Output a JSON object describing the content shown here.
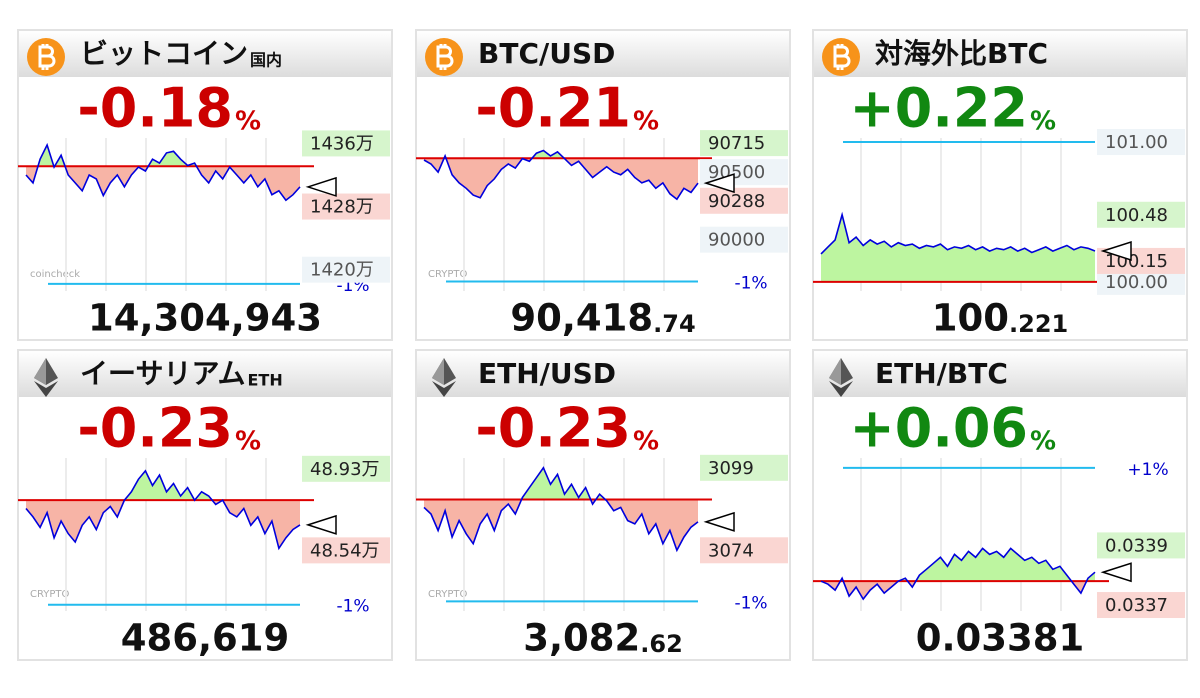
{
  "panels": [
    {
      "icon": "btc",
      "title": "ビットコイン",
      "title_sub": "国内",
      "change": "-0.18",
      "change_unit": "%",
      "change_color": "#cc0000",
      "price": "14,304,943",
      "watermark": "coincheck",
      "chart": {
        "type": "line",
        "color": "#0000dd",
        "ylim": [
          1417.3,
          1437.7
        ],
        "base": 1433.1,
        "band": {
          "value": 1418.2,
          "label": "-1%"
        },
        "high": {
          "value": 1436,
          "label": "1436万"
        },
        "low": {
          "value": 1428,
          "label": "1428万"
        },
        "yticks": [
          {
            "value": 1420,
            "label": "1420万"
          }
        ],
        "last": 1430.49,
        "values": [
          1432,
          1431,
          1434,
          1435.8,
          1433,
          1434.5,
          1432,
          1431,
          1430,
          1432,
          1431.5,
          1429.4,
          1431,
          1432,
          1430.5,
          1432,
          1433,
          1432.5,
          1434,
          1433.5,
          1434.8,
          1435,
          1434,
          1433.2,
          1433.5,
          1432,
          1431,
          1432.5,
          1431.5,
          1433,
          1432,
          1431,
          1432,
          1430.5,
          1431.5,
          1429.5,
          1430,
          1428.8,
          1429.5,
          1430.49
        ]
      }
    },
    {
      "icon": "btc",
      "title": "BTC/USD",
      "change": "-0.21",
      "change_unit": "%",
      "change_color": "#cc0000",
      "price": "90,418",
      "price_decimals": ".74",
      "watermark": "CRYPTO",
      "chart": {
        "type": "line",
        "color": "#0000dd",
        "ylim": [
          89620,
          90812
        ],
        "base": 90603,
        "band": {
          "value": 89690,
          "label": "-1%"
        },
        "high": 90715,
        "low": 90288,
        "yticks": [
          90500,
          90000
        ],
        "last": 90418.74,
        "values": [
          90590,
          90560,
          90500,
          90620,
          90480,
          90420,
          90380,
          90330,
          90310,
          90400,
          90450,
          90520,
          90560,
          90530,
          90600,
          90580,
          90640,
          90660,
          90620,
          90650,
          90600,
          90550,
          90580,
          90520,
          90460,
          90500,
          90540,
          90500,
          90480,
          90520,
          90460,
          90420,
          90440,
          90380,
          90420,
          90340,
          90300,
          90380,
          90350,
          90418.74
        ]
      }
    },
    {
      "icon": "btc",
      "title": "対海外比BTC",
      "change": "+0.22",
      "change_unit": "%",
      "change_color": "#118811",
      "price": "100",
      "price_decimals": ".221",
      "chart": {
        "type": "line",
        "color": "#0000dd",
        "ylim": [
          99.935,
          101.086
        ],
        "base": 100,
        "band": {
          "value": 101
        },
        "high": 100.48,
        "low": 100.15,
        "yticks": [
          {
            "value": 101,
            "label": "101.00"
          },
          {
            "value": 100,
            "label": "100.00"
          }
        ],
        "last": 100.221,
        "values": [
          100.2,
          100.25,
          100.3,
          100.48,
          100.28,
          100.32,
          100.26,
          100.3,
          100.27,
          100.29,
          100.25,
          100.28,
          100.26,
          100.27,
          100.24,
          100.26,
          100.25,
          100.27,
          100.23,
          100.25,
          100.24,
          100.26,
          100.23,
          100.25,
          100.22,
          100.24,
          100.23,
          100.25,
          100.22,
          100.24,
          100.21,
          100.23,
          100.25,
          100.22,
          100.24,
          100.26,
          100.23,
          100.25,
          100.24,
          100.221
        ]
      }
    },
    {
      "icon": "eth",
      "title": "イーサリアム",
      "title_sub": "ETH",
      "change": "-0.23",
      "change_unit": "%",
      "change_color": "#cc0000",
      "price": "486,619",
      "watermark": "CRYPTO",
      "chart": {
        "type": "line",
        "color": "#0000dd",
        "ylim": [
          48.25,
          49.02
        ],
        "base": 48.78,
        "band": {
          "value": 48.28,
          "label": "-1%"
        },
        "high": {
          "value": 48.93,
          "label": "48.93万"
        },
        "low": {
          "value": 48.54,
          "label": "48.54万"
        },
        "last": 48.6619,
        "values": [
          48.74,
          48.7,
          48.65,
          48.72,
          48.6,
          48.68,
          48.62,
          48.58,
          48.66,
          48.7,
          48.64,
          48.72,
          48.75,
          48.7,
          48.78,
          48.82,
          48.88,
          48.92,
          48.85,
          48.9,
          48.82,
          48.86,
          48.8,
          48.84,
          48.78,
          48.82,
          48.8,
          48.76,
          48.78,
          48.72,
          48.7,
          48.74,
          48.66,
          48.7,
          48.62,
          48.68,
          48.55,
          48.6,
          48.64,
          48.6619
        ]
      }
    },
    {
      "icon": "eth",
      "title": "ETH/USD",
      "change": "-0.23",
      "change_unit": "%",
      "change_color": "#cc0000",
      "price": "3,082",
      "price_decimals": ".62",
      "watermark": "CRYPTO",
      "chart": {
        "type": "line",
        "color": "#0000dd",
        "ylim": [
          3055.6,
          3104.4
        ],
        "base": 3089.4,
        "band": {
          "value": 3058.5,
          "label": "-1%"
        },
        "high": 3099,
        "low": 3074,
        "last": 3082.62,
        "values": [
          3087,
          3085,
          3080,
          3086,
          3078,
          3083,
          3079,
          3076,
          3082,
          3085,
          3080,
          3086,
          3088,
          3085,
          3090,
          3093,
          3096,
          3099,
          3094,
          3097,
          3091,
          3094,
          3090,
          3093,
          3088,
          3091,
          3089,
          3086,
          3087,
          3083,
          3082,
          3085,
          3079,
          3082,
          3076,
          3080,
          3074,
          3078,
          3081,
          3082.62
        ]
      }
    },
    {
      "icon": "eth",
      "title": "ETH/BTC",
      "change": "+0.06",
      "change_unit": "%",
      "change_color": "#118811",
      "price": "0.03381",
      "chart": {
        "type": "line",
        "color": "#0000dd",
        "ylim": [
          0.03368,
          0.03422
        ],
        "base": 0.03378,
        "band": {
          "value": 0.03416,
          "label": "+1%"
        },
        "high": 0.0339,
        "low": 0.0337,
        "last": 0.03381,
        "values": [
          0.03378,
          0.03377,
          0.03375,
          0.03379,
          0.03373,
          0.03376,
          0.03372,
          0.03375,
          0.03377,
          0.03374,
          0.03376,
          0.03378,
          0.03379,
          0.03376,
          0.0338,
          0.03382,
          0.03384,
          0.03386,
          0.03383,
          0.03387,
          0.03385,
          0.03388,
          0.03386,
          0.03389,
          0.03387,
          0.03388,
          0.03386,
          0.03389,
          0.03387,
          0.03385,
          0.03386,
          0.03384,
          0.03385,
          0.03382,
          0.03383,
          0.0338,
          0.03377,
          0.03374,
          0.03379,
          0.03381
        ]
      }
    }
  ]
}
